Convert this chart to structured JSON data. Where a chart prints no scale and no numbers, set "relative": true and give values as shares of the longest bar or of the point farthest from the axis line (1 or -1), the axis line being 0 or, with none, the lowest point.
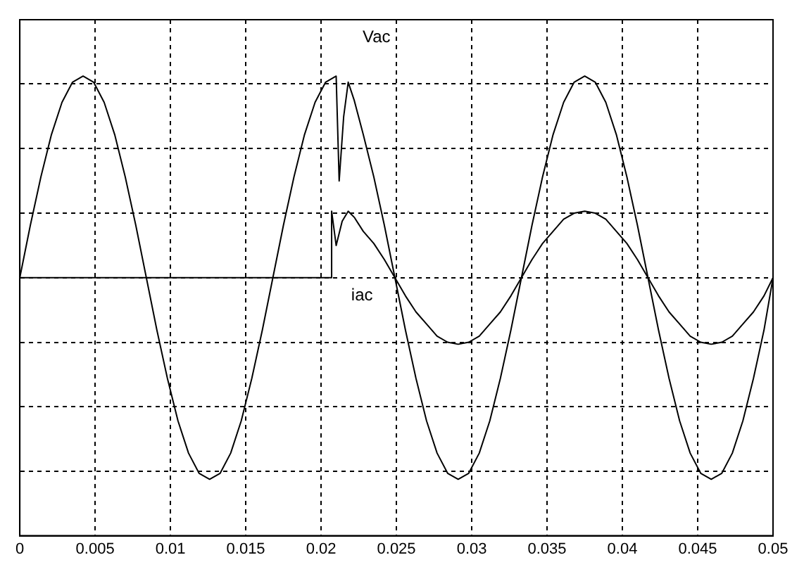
{
  "chart_data": {
    "type": "line",
    "relative": true,
    "grid": true,
    "legend": false,
    "marker": "none",
    "xlim": [
      0,
      0.05
    ],
    "xticks": [
      0,
      0.005,
      0.01,
      0.015,
      0.02,
      0.025,
      0.03,
      0.035,
      0.04,
      0.045,
      0.05
    ],
    "series": [
      {
        "name": "Vac",
        "color": "#000000",
        "x": [
          0,
          0.0007,
          0.0014,
          0.0021,
          0.0028,
          0.0035,
          0.0042,
          0.0049,
          0.0056,
          0.0063,
          0.007,
          0.0077,
          0.0084,
          0.0091,
          0.0098,
          0.0105,
          0.0112,
          0.0119,
          0.0126,
          0.0133,
          0.014,
          0.0147,
          0.0154,
          0.0161,
          0.0168,
          0.0175,
          0.0182,
          0.0189,
          0.0196,
          0.0203,
          0.021,
          0.0212,
          0.0215,
          0.0218,
          0.0222,
          0.0228,
          0.0235,
          0.0242,
          0.0249,
          0.0256,
          0.0263,
          0.027,
          0.0277,
          0.0284,
          0.0291,
          0.0298,
          0.0305,
          0.0312,
          0.0319,
          0.0326,
          0.0333,
          0.034,
          0.0347,
          0.0354,
          0.0361,
          0.0368,
          0.0375,
          0.0382,
          0.0389,
          0.0396,
          0.0403,
          0.041,
          0.0417,
          0.0424,
          0.0431,
          0.0438,
          0.0445,
          0.0452,
          0.0459,
          0.0466,
          0.0473,
          0.048,
          0.0487,
          0.0494,
          0.05
        ],
        "values": [
          0,
          0.26,
          0.5,
          0.71,
          0.87,
          0.97,
          1,
          0.97,
          0.87,
          0.71,
          0.5,
          0.26,
          0,
          -0.26,
          -0.5,
          -0.71,
          -0.87,
          -0.97,
          -1,
          -0.97,
          -0.87,
          -0.71,
          -0.5,
          -0.26,
          0,
          0.26,
          0.5,
          0.71,
          0.87,
          0.97,
          1,
          0.48,
          0.8,
          0.97,
          0.88,
          0.71,
          0.5,
          0.26,
          0,
          -0.26,
          -0.5,
          -0.71,
          -0.87,
          -0.97,
          -1,
          -0.97,
          -0.87,
          -0.71,
          -0.5,
          -0.26,
          0,
          0.26,
          0.5,
          0.71,
          0.87,
          0.97,
          1,
          0.97,
          0.87,
          0.71,
          0.5,
          0.26,
          0,
          -0.26,
          -0.5,
          -0.71,
          -0.87,
          -0.97,
          -1,
          -0.97,
          -0.87,
          -0.71,
          -0.5,
          -0.26,
          0
        ]
      },
      {
        "name": "iac",
        "color": "#000000",
        "x": [
          0,
          0.0207,
          0.0207,
          0.021,
          0.0214,
          0.0218,
          0.0222,
          0.0228,
          0.0235,
          0.0242,
          0.0249,
          0.0256,
          0.0263,
          0.027,
          0.0277,
          0.0284,
          0.0291,
          0.0298,
          0.0305,
          0.0312,
          0.0319,
          0.0326,
          0.0333,
          0.034,
          0.0347,
          0.0354,
          0.0361,
          0.0368,
          0.0375,
          0.0382,
          0.0389,
          0.0396,
          0.0403,
          0.041,
          0.0417,
          0.0424,
          0.0431,
          0.0438,
          0.0445,
          0.0452,
          0.0459,
          0.0466,
          0.0473,
          0.048,
          0.0487,
          0.0494,
          0.05
        ],
        "values": [
          0,
          0,
          0.33,
          0.16,
          0.28,
          0.33,
          0.3,
          0.23,
          0.17,
          0.09,
          0,
          -0.09,
          -0.17,
          -0.23,
          -0.29,
          -0.32,
          -0.33,
          -0.32,
          -0.29,
          -0.23,
          -0.17,
          -0.09,
          0,
          0.09,
          0.17,
          0.23,
          0.29,
          0.32,
          0.33,
          0.32,
          0.29,
          0.23,
          0.17,
          0.09,
          0,
          -0.09,
          -0.17,
          -0.23,
          -0.29,
          -0.32,
          -0.33,
          -0.32,
          -0.29,
          -0.23,
          -0.17,
          -0.09,
          0
        ]
      }
    ]
  }
}
